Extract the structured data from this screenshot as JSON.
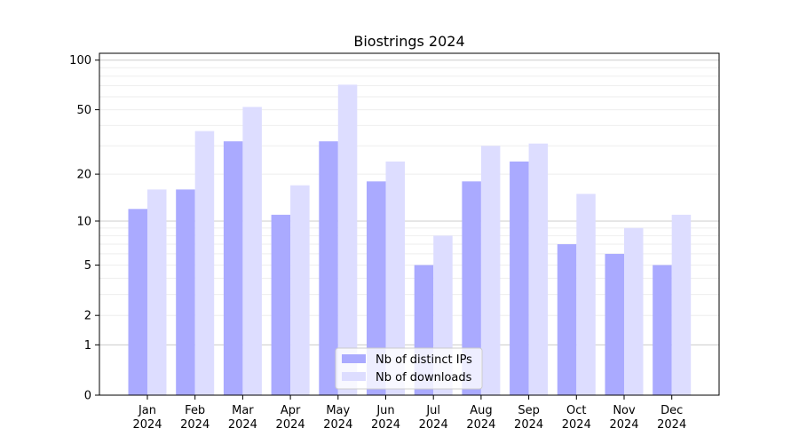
{
  "chart_data": {
    "type": "bar",
    "title": "Biostrings 2024",
    "categories": [
      "Jan\n2024",
      "Feb\n2024",
      "Mar\n2024",
      "Apr\n2024",
      "May\n2024",
      "Jun\n2024",
      "Jul\n2024",
      "Aug\n2024",
      "Sep\n2024",
      "Oct\n2024",
      "Nov\n2024",
      "Dec\n2024"
    ],
    "series": [
      {
        "name": "Nb of distinct IPs",
        "color": "#aaaaff",
        "values": [
          12,
          16,
          32,
          11,
          32,
          18,
          5,
          18,
          24,
          7,
          6,
          5
        ]
      },
      {
        "name": "Nb of downloads",
        "color": "#ddddff",
        "values": [
          16,
          37,
          52,
          17,
          71,
          24,
          8,
          30,
          31,
          15,
          9,
          11
        ]
      }
    ],
    "y_scale": "log1p",
    "ylim": [
      0,
      110
    ],
    "yticks": [
      0,
      1,
      2,
      5,
      10,
      20,
      50,
      100
    ],
    "grid": true,
    "legend_position": "bottom-center"
  }
}
